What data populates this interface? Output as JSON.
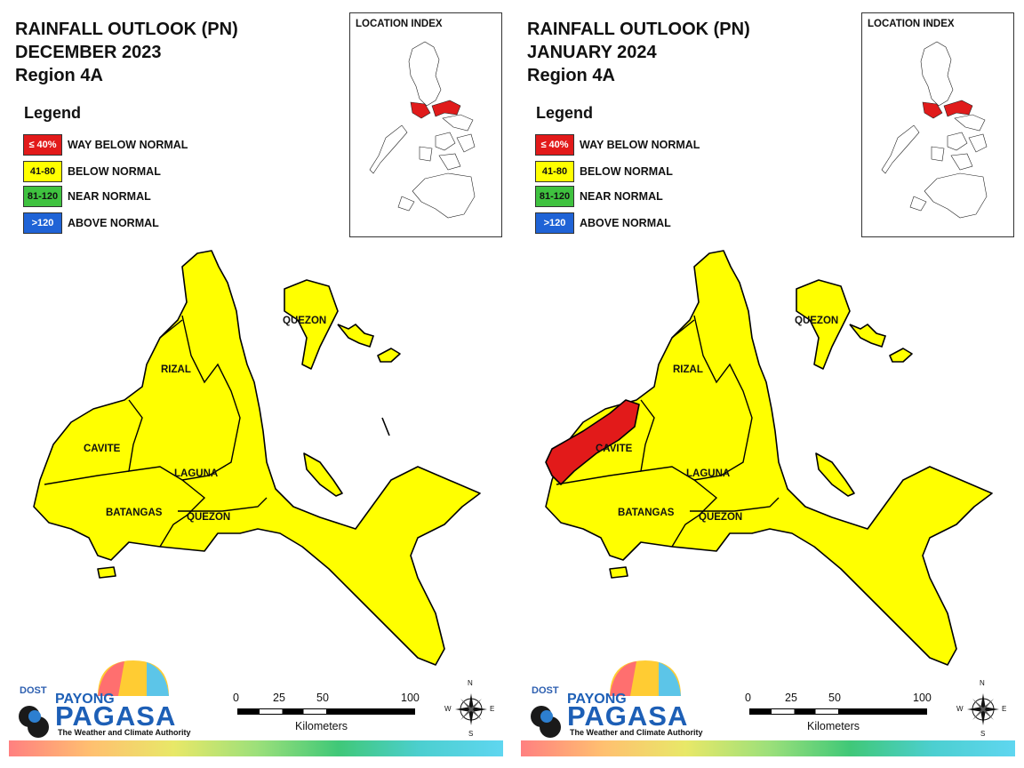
{
  "panels": [
    {
      "title": [
        "RAINFALL OUTLOOK (PN)",
        "DECEMBER 2023",
        "Region 4A"
      ],
      "cavite_status": "below",
      "province_labels": {
        "rizal": "RIZAL",
        "cavite": "CAVITE",
        "laguna": "LAGUNA",
        "batangas": "BATANGAS",
        "quezon_south": "QUEZON",
        "quezon_north": "QUEZON"
      }
    },
    {
      "title": [
        "RAINFALL OUTLOOK (PN)",
        "JANUARY 2024",
        "Region 4A"
      ],
      "cavite_status": "way_below",
      "province_labels": {
        "rizal": "RIZAL",
        "cavite": "CAVITE",
        "laguna": "LAGUNA",
        "batangas": "BATANGAS",
        "quezon_south": "QUEZON",
        "quezon_north": "QUEZON"
      }
    }
  ],
  "legend": {
    "title": "Legend",
    "items": [
      {
        "range": "≤ 40%",
        "label": "WAY BELOW NORMAL",
        "color": "#e21a1a",
        "text_color": "#ffffff"
      },
      {
        "range": "41-80",
        "label": "BELOW NORMAL",
        "color": "#ffff00",
        "text_color": "#111111"
      },
      {
        "range": "81-120",
        "label": "NEAR NORMAL",
        "color": "#3fc23f",
        "text_color": "#111111"
      },
      {
        "range": ">120",
        "label": "ABOVE NORMAL",
        "color": "#1f63d6",
        "text_color": "#ffffff"
      }
    ]
  },
  "location_index": {
    "title": "LOCATION INDEX",
    "highlight_color": "#e01b1b"
  },
  "scale": {
    "ticks": [
      "0",
      "25",
      "50",
      "100"
    ],
    "unit": "Kilometers"
  },
  "compass": {
    "n": "N",
    "s": "S",
    "e": "E",
    "w": "W"
  },
  "logo": {
    "dost": "DOST",
    "payong": "PAYONG",
    "pagasa": "PAGASA",
    "tagline": "The Weather and Climate Authority"
  },
  "colors": {
    "map_fill": "#ffff00",
    "map_stroke": "#000000",
    "way_below": "#e21a1a"
  }
}
